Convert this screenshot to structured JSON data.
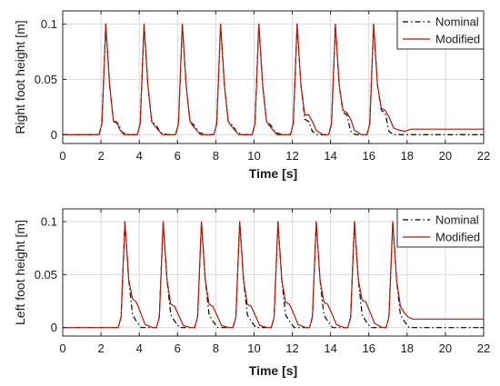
{
  "chart_data": [
    {
      "type": "line",
      "xlabel": "Time [s]",
      "ylabel": "Right foot height [m]",
      "xlim": [
        0,
        22
      ],
      "ylim": [
        -0.008,
        0.112
      ],
      "xticks": [
        0,
        2,
        4,
        6,
        8,
        10,
        12,
        14,
        16,
        18,
        20,
        22
      ],
      "xtick_labels": [
        "0",
        "2",
        "4",
        "6",
        "8",
        "10",
        "12",
        "14",
        "16",
        "18",
        "20",
        "22"
      ],
      "yticks": [
        0,
        0.05,
        0.1
      ],
      "ytick_labels": [
        "0",
        "0.05",
        "0.1"
      ],
      "grid": true,
      "legend": "top-right",
      "series": [
        {
          "name": "Nominal",
          "color": "#000000",
          "style": "dashdot",
          "x": [
            0,
            1.9,
            2.05,
            2.25,
            2.45,
            2.65,
            2.9,
            3.1,
            3.5,
            3.9,
            4.05,
            4.25,
            4.45,
            4.65,
            4.9,
            5.1,
            5.5,
            5.9,
            6.05,
            6.25,
            6.45,
            6.65,
            6.9,
            7.1,
            7.5,
            7.9,
            8.05,
            8.25,
            8.45,
            8.65,
            8.9,
            9.1,
            9.5,
            9.9,
            10.05,
            10.25,
            10.45,
            10.65,
            10.9,
            11.1,
            11.5,
            11.9,
            12.05,
            12.25,
            12.45,
            12.65,
            12.85,
            13.05,
            13.3,
            13.9,
            14.05,
            14.25,
            14.45,
            14.65,
            14.85,
            15.05,
            15.3,
            15.9,
            16.05,
            16.25,
            16.45,
            16.65,
            16.85,
            17.05,
            17.3,
            22
          ],
          "y": [
            0,
            0,
            0.01,
            0.1,
            0.045,
            0.012,
            0.01,
            0.002,
            0,
            0,
            0.01,
            0.1,
            0.045,
            0.012,
            0.008,
            0.002,
            0,
            0,
            0.01,
            0.1,
            0.045,
            0.012,
            0.008,
            0.002,
            0,
            0,
            0.01,
            0.1,
            0.045,
            0.012,
            0.008,
            0.002,
            0,
            0,
            0.01,
            0.1,
            0.045,
            0.012,
            0.008,
            0.002,
            0,
            0,
            0.01,
            0.1,
            0.045,
            0.014,
            0.012,
            0.003,
            0,
            0,
            0.01,
            0.1,
            0.045,
            0.02,
            0.018,
            0.003,
            0,
            0,
            0.01,
            0.1,
            0.045,
            0.022,
            0.02,
            0.003,
            0,
            0
          ]
        },
        {
          "name": "Modified",
          "color": "#b01a0a",
          "style": "solid",
          "x": [
            0,
            1.9,
            2.05,
            2.25,
            2.45,
            2.65,
            2.8,
            3.0,
            3.2,
            3.6,
            3.9,
            4.05,
            4.25,
            4.45,
            4.65,
            4.8,
            5.0,
            5.2,
            5.6,
            5.9,
            6.05,
            6.25,
            6.45,
            6.65,
            6.8,
            7.0,
            7.2,
            7.6,
            7.9,
            8.05,
            8.25,
            8.45,
            8.65,
            8.8,
            9.0,
            9.2,
            9.6,
            9.9,
            10.05,
            10.25,
            10.45,
            10.65,
            10.8,
            11.0,
            11.2,
            11.6,
            11.9,
            12.05,
            12.25,
            12.45,
            12.65,
            12.85,
            13.05,
            13.25,
            13.6,
            13.9,
            14.05,
            14.25,
            14.45,
            14.65,
            14.85,
            15.05,
            15.25,
            15.6,
            15.9,
            16.05,
            16.25,
            16.45,
            16.65,
            16.85,
            17.05,
            17.3,
            17.6,
            17.9,
            18.2,
            22
          ],
          "y": [
            0,
            0,
            0.01,
            0.1,
            0.045,
            0.012,
            0.012,
            0.004,
            0,
            0,
            0,
            0.01,
            0.1,
            0.045,
            0.012,
            0.008,
            0.004,
            0,
            0,
            0,
            0.01,
            0.1,
            0.045,
            0.012,
            0.008,
            0.004,
            0,
            0,
            0,
            0.01,
            0.1,
            0.045,
            0.012,
            0.008,
            0.004,
            0,
            0,
            0,
            0.01,
            0.1,
            0.045,
            0.012,
            0.008,
            0.004,
            0,
            0,
            0,
            0.01,
            0.1,
            0.045,
            0.018,
            0.018,
            0.012,
            0.004,
            0,
            0,
            0.01,
            0.1,
            0.045,
            0.022,
            0.02,
            0.014,
            0.004,
            0,
            0,
            0.01,
            0.1,
            0.045,
            0.024,
            0.022,
            0.016,
            0.006,
            0.004,
            0.003,
            0.005,
            0.005
          ]
        }
      ]
    },
    {
      "type": "line",
      "xlabel": "Time [s]",
      "ylabel": "Left foot height [m]",
      "xlim": [
        0,
        22
      ],
      "ylim": [
        -0.008,
        0.112
      ],
      "xticks": [
        0,
        2,
        4,
        6,
        8,
        10,
        12,
        14,
        16,
        18,
        20,
        22
      ],
      "xtick_labels": [
        "0",
        "2",
        "4",
        "6",
        "8",
        "10",
        "12",
        "14",
        "16",
        "18",
        "20",
        "22"
      ],
      "yticks": [
        0,
        0.05,
        0.1
      ],
      "ytick_labels": [
        "0",
        "0.05",
        "0.1"
      ],
      "grid": true,
      "legend": "top-right",
      "series": [
        {
          "name": "Nominal",
          "color": "#000000",
          "style": "dashdot",
          "x": [
            0,
            2.9,
            3.05,
            3.25,
            3.45,
            3.65,
            3.85,
            4.1,
            4.5,
            4.9,
            5.05,
            5.25,
            5.45,
            5.65,
            5.85,
            6.1,
            6.5,
            6.9,
            7.05,
            7.25,
            7.45,
            7.65,
            7.85,
            8.1,
            8.5,
            8.9,
            9.05,
            9.25,
            9.45,
            9.65,
            9.85,
            10.1,
            10.5,
            10.9,
            11.05,
            11.25,
            11.45,
            11.65,
            11.85,
            12.1,
            12.5,
            12.9,
            13.05,
            13.25,
            13.45,
            13.65,
            13.85,
            14.1,
            14.5,
            14.9,
            15.05,
            15.25,
            15.45,
            15.65,
            15.85,
            16.1,
            16.5,
            16.9,
            17.05,
            17.25,
            17.45,
            17.65,
            17.85,
            18.1,
            22
          ],
          "y": [
            0,
            0,
            0.01,
            0.1,
            0.045,
            0.012,
            0.006,
            0,
            0,
            0,
            0.01,
            0.1,
            0.045,
            0.012,
            0.006,
            0,
            0,
            0,
            0.01,
            0.1,
            0.045,
            0.012,
            0.006,
            0,
            0,
            0,
            0.01,
            0.1,
            0.045,
            0.012,
            0.006,
            0,
            0,
            0,
            0.01,
            0.1,
            0.045,
            0.012,
            0.006,
            0,
            0,
            0,
            0.01,
            0.1,
            0.045,
            0.012,
            0.006,
            0,
            0,
            0,
            0.01,
            0.1,
            0.045,
            0.012,
            0.006,
            0,
            0,
            0,
            0.01,
            0.1,
            0.045,
            0.012,
            0.006,
            0,
            0
          ]
        },
        {
          "name": "Modified",
          "color": "#b01a0a",
          "style": "solid",
          "x": [
            0,
            2.9,
            3.05,
            3.25,
            3.45,
            3.65,
            3.85,
            4.05,
            4.3,
            4.7,
            4.9,
            5.05,
            5.25,
            5.45,
            5.65,
            5.85,
            6.05,
            6.3,
            6.7,
            6.9,
            7.05,
            7.25,
            7.45,
            7.65,
            7.85,
            8.05,
            8.3,
            8.7,
            8.9,
            9.05,
            9.25,
            9.45,
            9.65,
            9.85,
            10.05,
            10.3,
            10.7,
            10.9,
            11.05,
            11.25,
            11.45,
            11.65,
            11.85,
            12.05,
            12.3,
            12.7,
            12.9,
            13.05,
            13.25,
            13.45,
            13.65,
            13.85,
            14.05,
            14.3,
            14.7,
            14.9,
            15.05,
            15.25,
            15.45,
            15.65,
            15.85,
            16.05,
            16.3,
            16.7,
            16.9,
            17.05,
            17.25,
            17.45,
            17.65,
            17.85,
            18.05,
            18.3,
            22
          ],
          "y": [
            0,
            0,
            0.01,
            0.1,
            0.045,
            0.027,
            0.024,
            0.015,
            0.003,
            0,
            0,
            0.01,
            0.1,
            0.045,
            0.022,
            0.02,
            0.012,
            0.002,
            0,
            0,
            0.01,
            0.1,
            0.045,
            0.022,
            0.02,
            0.012,
            0.002,
            0,
            0,
            0.01,
            0.1,
            0.045,
            0.022,
            0.02,
            0.012,
            0.002,
            0,
            0,
            0.01,
            0.1,
            0.045,
            0.024,
            0.022,
            0.014,
            0.003,
            0,
            0,
            0.01,
            0.1,
            0.045,
            0.024,
            0.022,
            0.014,
            0.003,
            0,
            0,
            0.01,
            0.1,
            0.045,
            0.026,
            0.024,
            0.015,
            0.004,
            0,
            0,
            0.01,
            0.1,
            0.045,
            0.02,
            0.014,
            0.01,
            0.008,
            0.008
          ]
        }
      ]
    }
  ]
}
